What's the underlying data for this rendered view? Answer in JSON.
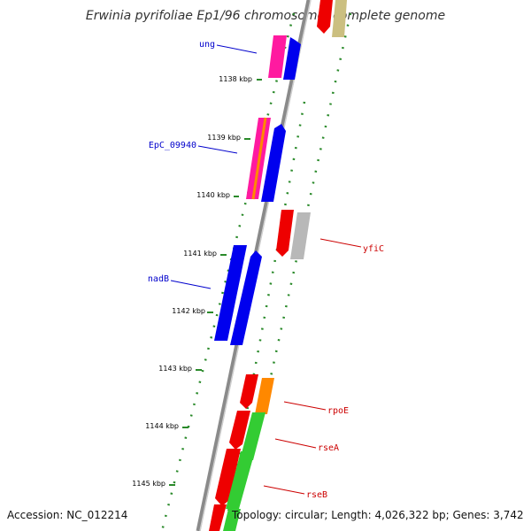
{
  "title": "Erwinia pyrifoliae Ep1/96 chromosome, complete genome",
  "footer": {
    "accession": "Accession: NC_012214",
    "topology": "Topology: circular; Length: 4,026,322 bp; Genes: 3,742"
  },
  "ticks": [
    "1138 kbp",
    "1139 kbp",
    "1140 kbp",
    "1141 kbp",
    "1142 kbp",
    "1143 kbp",
    "1144 kbp",
    "1145 kbp"
  ],
  "gene_labels": {
    "left": [
      {
        "name": "ung",
        "color": "#0000cc"
      },
      {
        "name": "EpC_09940",
        "color": "#0000cc"
      },
      {
        "name": "nadB",
        "color": "#0000cc"
      }
    ],
    "right": [
      {
        "name": "yfiC",
        "color": "#cc0000"
      },
      {
        "name": "rpoE",
        "color": "#cc0000"
      },
      {
        "name": "rseA",
        "color": "#cc0000"
      },
      {
        "name": "rseB",
        "color": "#cc0000"
      }
    ]
  },
  "colors": {
    "backbone": "#8a8a8a",
    "forward_cds": "#0000ee",
    "reverse_cds": "#ee0000",
    "pink_feature": "#ff1aa0",
    "olive_feature": "#cbbf80",
    "orange_feature": "#ff8800",
    "green_feature": "#33cc33",
    "gray_feature": "#b8b8b8",
    "gc_dots": "#2a8a2a"
  }
}
